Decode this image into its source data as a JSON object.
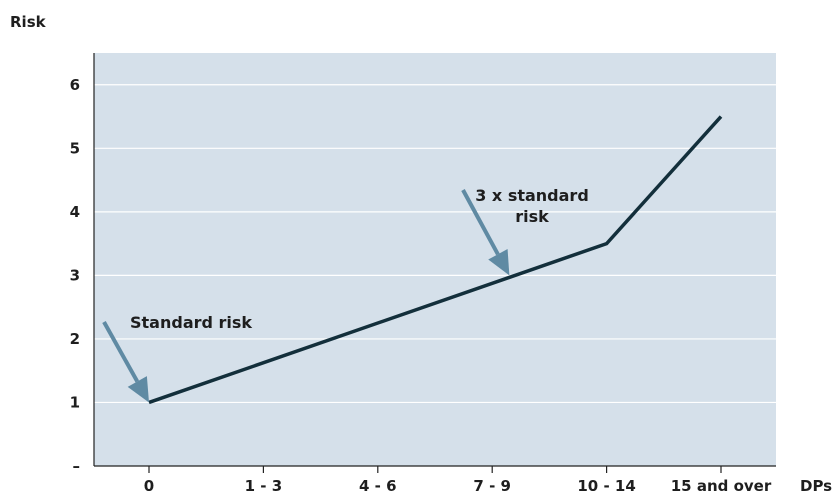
{
  "chart_data": {
    "type": "line",
    "title": "",
    "ylabel": "Risk",
    "xlabel": "DPs",
    "categories": [
      "0",
      "1 - 3",
      "4 - 6",
      "7 - 9",
      "10 - 14",
      "15 and over"
    ],
    "x": [
      0,
      1,
      2,
      3,
      4,
      5
    ],
    "y_ticks": [
      0,
      1,
      2,
      3,
      4,
      5,
      6
    ],
    "y_tick_labels": [
      "–",
      "1",
      "2",
      "3",
      "4",
      "5",
      "6"
    ],
    "ylim": [
      0,
      6.5
    ],
    "grid": "horizontal",
    "series": [
      {
        "x": [
          0,
          4,
          5
        ],
        "values": [
          1,
          3.5,
          5.5
        ]
      }
    ],
    "annotations": [
      {
        "lines": [
          "Standard risk"
        ],
        "arrow_target": {
          "x": 0,
          "y": 1
        }
      },
      {
        "lines": [
          "3 x standard",
          "risk"
        ],
        "arrow_target": {
          "x": 3.15,
          "y": 3.0
        }
      }
    ],
    "colors": {
      "plot_background": "#d5e0ea",
      "line": "#132f3b",
      "arrow": "#5f8aa3",
      "grid": "#ffffff",
      "axis": "#222222"
    }
  }
}
